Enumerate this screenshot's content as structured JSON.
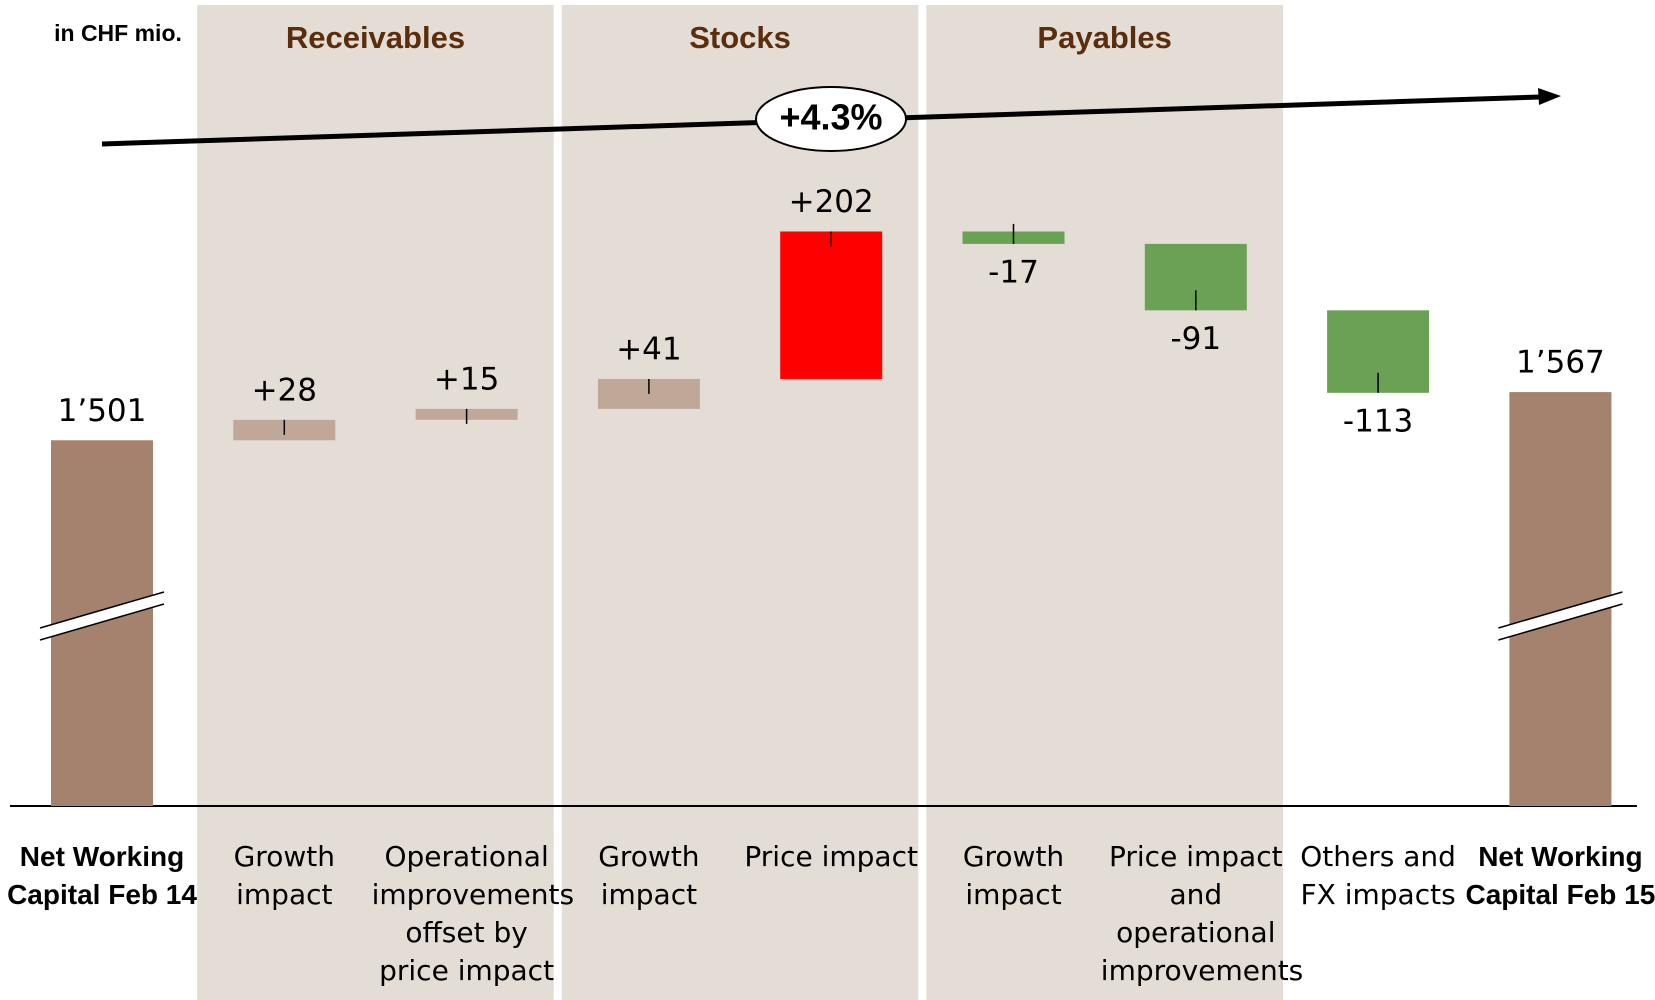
{
  "chart_data": {
    "type": "waterfall",
    "unit_label": "in CHF mio.",
    "annotation": "+4.3%",
    "categories": [
      "Net Working Capital Feb 14",
      "Growth impact",
      "Operational improvements offset by price impact",
      "Growth impact",
      "Price impact",
      "Growth impact",
      "Price impact and operational improvements",
      "Others and FX impacts",
      "Net Working Capital Feb 15"
    ],
    "category_groups": [
      null,
      "Receivables",
      "Receivables",
      "Stocks",
      "Stocks",
      "Payables",
      "Payables",
      null,
      null
    ],
    "values": [
      1501,
      28,
      15,
      41,
      202,
      -17,
      -91,
      -113,
      1567
    ],
    "value_labels": [
      "1’501",
      "+28",
      "+15",
      "+41",
      "+202",
      "-17",
      "-91",
      "-113",
      "1’567"
    ],
    "colors": [
      "#a5826e",
      "#bfa898",
      "#bfa898",
      "#bfa898",
      "#ff0000",
      "#6aa155",
      "#6aa155",
      "#6aa155",
      "#a5826e"
    ],
    "ylim": [
      1000,
      1900
    ]
  }
}
